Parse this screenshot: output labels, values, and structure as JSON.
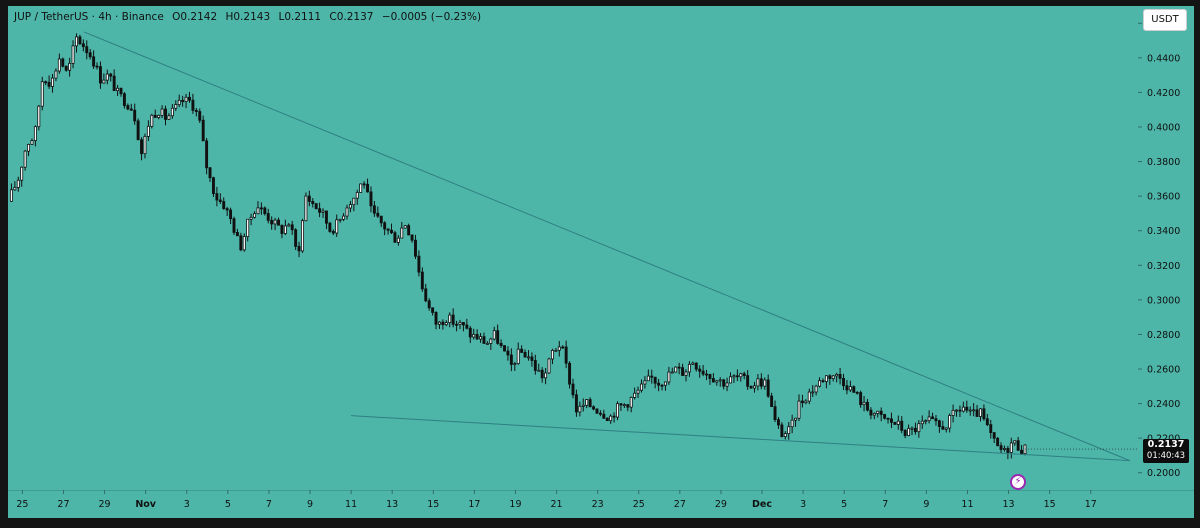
{
  "legend": {
    "symbol": "JUP / TetherUS · 4h · Binance",
    "open": "O0.2142",
    "high": "H0.2143",
    "low": "L0.2111",
    "close": "C0.2137",
    "change": "−0.0005 (−0.23%)"
  },
  "currency_button": "USDT",
  "price_tag": {
    "price": "0.2137",
    "countdown": "01:40:43"
  },
  "replay_icon": "lightning-icon",
  "colors": {
    "background": "#4db6a9",
    "candle": "#111111",
    "trendline": "#2f7f83",
    "axis_text": "#111111"
  },
  "chart_data": {
    "type": "candlestick",
    "title": "",
    "xlabel": "",
    "ylabel": "",
    "ylim": [
      0.19,
      0.47
    ],
    "y_ticks": [
      "0.4600",
      "0.4400",
      "0.4200",
      "0.4000",
      "0.3800",
      "0.3600",
      "0.3400",
      "0.3200",
      "0.3000",
      "0.2800",
      "0.2600",
      "0.2400",
      "0.2200",
      "0.2000"
    ],
    "x_ticks": [
      {
        "label": "25",
        "day": 25
      },
      {
        "label": "27",
        "day": 27
      },
      {
        "label": "29",
        "day": 29
      },
      {
        "label": "Nov",
        "day": 31,
        "bold": true
      },
      {
        "label": "3",
        "day": 33
      },
      {
        "label": "5",
        "day": 35
      },
      {
        "label": "7",
        "day": 37
      },
      {
        "label": "9",
        "day": 39
      },
      {
        "label": "11",
        "day": 41
      },
      {
        "label": "13",
        "day": 43
      },
      {
        "label": "15",
        "day": 45
      },
      {
        "label": "17",
        "day": 47
      },
      {
        "label": "19",
        "day": 49
      },
      {
        "label": "21",
        "day": 51
      },
      {
        "label": "23",
        "day": 53
      },
      {
        "label": "25",
        "day": 55
      },
      {
        "label": "27",
        "day": 57
      },
      {
        "label": "29",
        "day": 59
      },
      {
        "label": "Dec",
        "day": 61,
        "bold": true
      },
      {
        "label": "3",
        "day": 63
      },
      {
        "label": "5",
        "day": 65
      },
      {
        "label": "7",
        "day": 67
      },
      {
        "label": "9",
        "day": 69
      },
      {
        "label": "11",
        "day": 71
      },
      {
        "label": "13",
        "day": 73
      },
      {
        "label": "15",
        "day": 75
      },
      {
        "label": "17",
        "day": 77
      }
    ],
    "x_range_days": [
      24.3,
      79.3
    ],
    "price_path": [
      [
        24.3,
        0.357
      ],
      [
        24.8,
        0.37
      ],
      [
        25.2,
        0.39
      ],
      [
        25.6,
        0.395
      ],
      [
        26.0,
        0.43
      ],
      [
        26.4,
        0.425
      ],
      [
        26.8,
        0.44
      ],
      [
        27.2,
        0.43
      ],
      [
        27.6,
        0.452
      ],
      [
        28.0,
        0.447
      ],
      [
        28.4,
        0.44
      ],
      [
        28.8,
        0.428
      ],
      [
        29.2,
        0.43
      ],
      [
        29.6,
        0.42
      ],
      [
        30.0,
        0.415
      ],
      [
        30.4,
        0.41
      ],
      [
        30.8,
        0.385
      ],
      [
        31.2,
        0.405
      ],
      [
        31.6,
        0.41
      ],
      [
        32.0,
        0.405
      ],
      [
        32.4,
        0.41
      ],
      [
        32.8,
        0.415
      ],
      [
        33.2,
        0.415
      ],
      [
        33.6,
        0.405
      ],
      [
        34.0,
        0.375
      ],
      [
        34.4,
        0.36
      ],
      [
        34.8,
        0.355
      ],
      [
        35.2,
        0.345
      ],
      [
        35.6,
        0.33
      ],
      [
        36.0,
        0.345
      ],
      [
        36.4,
        0.355
      ],
      [
        36.8,
        0.35
      ],
      [
        37.2,
        0.345
      ],
      [
        37.6,
        0.34
      ],
      [
        38.0,
        0.345
      ],
      [
        38.4,
        0.325
      ],
      [
        38.8,
        0.36
      ],
      [
        39.2,
        0.355
      ],
      [
        39.6,
        0.35
      ],
      [
        40.0,
        0.34
      ],
      [
        40.4,
        0.345
      ],
      [
        40.8,
        0.355
      ],
      [
        41.2,
        0.36
      ],
      [
        41.6,
        0.37
      ],
      [
        42.0,
        0.35
      ],
      [
        42.4,
        0.345
      ],
      [
        42.8,
        0.34
      ],
      [
        43.2,
        0.335
      ],
      [
        43.6,
        0.345
      ],
      [
        44.0,
        0.335
      ],
      [
        44.4,
        0.31
      ],
      [
        44.8,
        0.295
      ],
      [
        45.2,
        0.285
      ],
      [
        45.6,
        0.29
      ],
      [
        46.0,
        0.287
      ],
      [
        46.4,
        0.285
      ],
      [
        46.8,
        0.28
      ],
      [
        47.2,
        0.278
      ],
      [
        47.6,
        0.275
      ],
      [
        48.0,
        0.28
      ],
      [
        48.4,
        0.27
      ],
      [
        48.8,
        0.262
      ],
      [
        49.2,
        0.27
      ],
      [
        49.6,
        0.268
      ],
      [
        50.0,
        0.26
      ],
      [
        50.4,
        0.255
      ],
      [
        50.8,
        0.27
      ],
      [
        51.2,
        0.275
      ],
      [
        51.6,
        0.255
      ],
      [
        52.0,
        0.235
      ],
      [
        52.4,
        0.24
      ],
      [
        52.8,
        0.238
      ],
      [
        53.2,
        0.235
      ],
      [
        53.6,
        0.232
      ],
      [
        54.0,
        0.238
      ],
      [
        54.4,
        0.24
      ],
      [
        54.8,
        0.245
      ],
      [
        55.2,
        0.25
      ],
      [
        55.6,
        0.255
      ],
      [
        56.0,
        0.252
      ],
      [
        56.4,
        0.256
      ],
      [
        56.8,
        0.26
      ],
      [
        57.2,
        0.258
      ],
      [
        57.6,
        0.265
      ],
      [
        58.0,
        0.26
      ],
      [
        58.4,
        0.257
      ],
      [
        58.8,
        0.254
      ],
      [
        59.2,
        0.252
      ],
      [
        59.6,
        0.255
      ],
      [
        60.0,
        0.255
      ],
      [
        60.4,
        0.25
      ],
      [
        60.8,
        0.253
      ],
      [
        61.2,
        0.252
      ],
      [
        61.6,
        0.23
      ],
      [
        62.0,
        0.222
      ],
      [
        62.4,
        0.225
      ],
      [
        62.8,
        0.24
      ],
      [
        63.2,
        0.245
      ],
      [
        63.6,
        0.25
      ],
      [
        64.0,
        0.255
      ],
      [
        64.4,
        0.257
      ],
      [
        64.8,
        0.255
      ],
      [
        65.2,
        0.25
      ],
      [
        65.6,
        0.245
      ],
      [
        66.0,
        0.238
      ],
      [
        66.4,
        0.235
      ],
      [
        66.8,
        0.232
      ],
      [
        67.2,
        0.23
      ],
      [
        67.6,
        0.228
      ],
      [
        68.0,
        0.223
      ],
      [
        68.4,
        0.225
      ],
      [
        68.8,
        0.228
      ],
      [
        69.2,
        0.23
      ],
      [
        69.6,
        0.226
      ],
      [
        70.0,
        0.228
      ],
      [
        70.4,
        0.235
      ],
      [
        70.8,
        0.238
      ],
      [
        71.2,
        0.233
      ],
      [
        71.6,
        0.235
      ],
      [
        72.0,
        0.225
      ],
      [
        72.4,
        0.215
      ],
      [
        72.8,
        0.212
      ],
      [
        73.2,
        0.218
      ],
      [
        73.6,
        0.214
      ],
      [
        73.8,
        0.2137
      ]
    ],
    "trendlines": [
      {
        "from": [
          28.0,
          0.455
        ],
        "to": [
          78.9,
          0.207
        ]
      },
      {
        "from": [
          41.0,
          0.233
        ],
        "to": [
          78.9,
          0.207
        ]
      }
    ],
    "last_price": 0.2137
  }
}
